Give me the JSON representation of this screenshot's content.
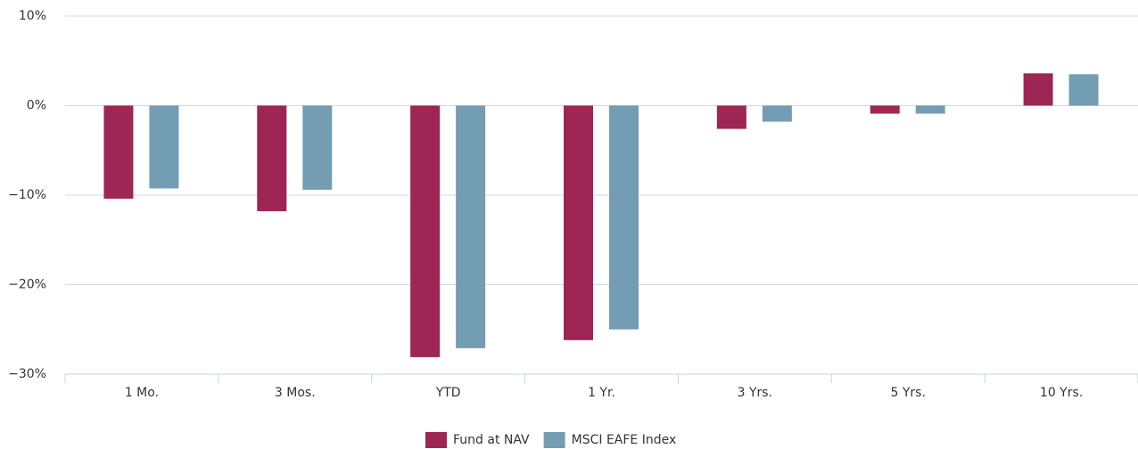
{
  "chart_data": {
    "type": "bar",
    "categories": [
      "1 Mo.",
      "3 Mos.",
      "YTD",
      "1 Yr.",
      "3 Yrs.",
      "5 Yrs.",
      "10 Yrs."
    ],
    "series": [
      {
        "name": "Fund at NAV",
        "color": "#9e2654",
        "values": [
          -10.4,
          -11.8,
          -28.1,
          -26.2,
          -2.6,
          -0.9,
          3.6
        ]
      },
      {
        "name": "MSCI EAFE Index",
        "color": "#739db3",
        "values": [
          -9.25,
          -9.4,
          -27.1,
          -25.0,
          -1.8,
          -0.9,
          3.5
        ]
      }
    ],
    "ylim": [
      -30,
      10
    ],
    "yticks": [
      {
        "value": -30,
        "label": "−30%"
      },
      {
        "value": -20,
        "label": "−20%"
      },
      {
        "value": -10,
        "label": "−10%"
      },
      {
        "value": 0,
        "label": "0%"
      },
      {
        "value": 10,
        "label": "10%"
      }
    ],
    "grid": true,
    "legend": "bottom"
  }
}
